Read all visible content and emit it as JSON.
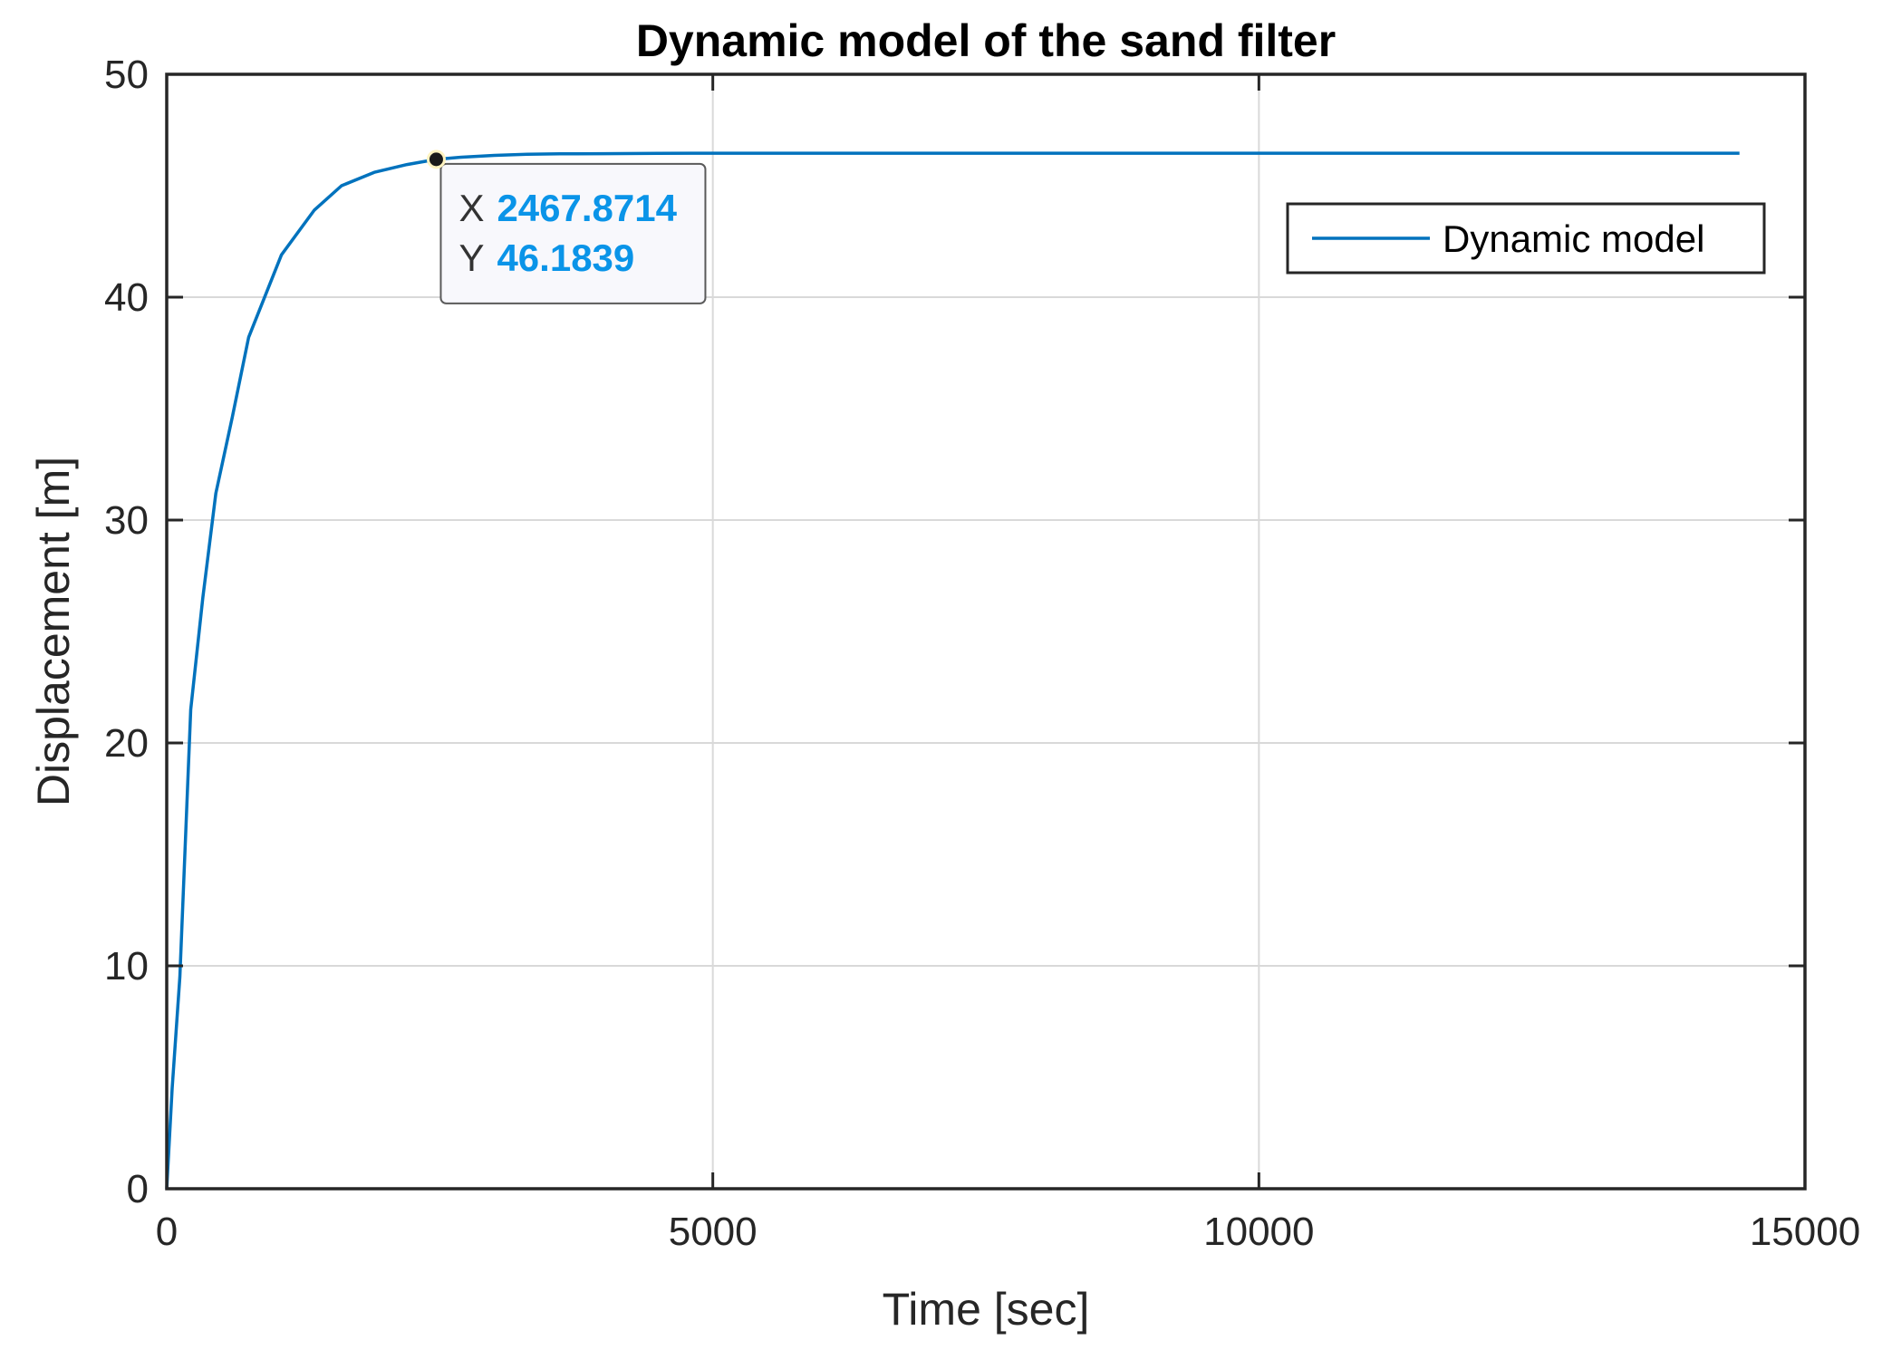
{
  "chart_data": {
    "type": "line",
    "title": "Dynamic model of the sand filter",
    "xlabel": "Time [sec]",
    "ylabel": "Displacement [m]",
    "xlim": [
      0,
      15000
    ],
    "ylim": [
      0,
      50
    ],
    "xticks": [
      0,
      5000,
      10000,
      15000
    ],
    "xtick_labels": [
      "0",
      "5000",
      "10000",
      "15000"
    ],
    "yticks": [
      0,
      10,
      20,
      30,
      40,
      50
    ],
    "ytick_labels": [
      "0",
      "10",
      "20",
      "30",
      "40",
      "50"
    ],
    "grid": true,
    "legend_position": "top-right",
    "series": [
      {
        "name": "Dynamic model",
        "color": "#0072bd",
        "x": [
          0,
          50,
          120,
          220,
          330,
          450,
          600,
          750,
          1050,
          1350,
          1600,
          1900,
          2200,
          2467.8714,
          2700,
          3000,
          3300,
          3600,
          4000,
          4500,
          5000,
          6000,
          8000,
          10000,
          12000,
          14400
        ],
        "y": [
          0,
          4.5,
          9.5,
          21.5,
          26.5,
          31.2,
          34.6,
          38.2,
          41.9,
          43.9,
          45.0,
          45.6,
          45.95,
          46.1839,
          46.28,
          46.36,
          46.41,
          46.43,
          46.44,
          46.45,
          46.46,
          46.46,
          46.46,
          46.46,
          46.46,
          46.46
        ]
      }
    ],
    "datatip": {
      "x_key": "X",
      "y_key": "Y",
      "x_value": "2467.8714",
      "y_value": "46.1839",
      "x": 2467.8714,
      "y": 46.1839,
      "value_color": "#0a94e8"
    }
  }
}
